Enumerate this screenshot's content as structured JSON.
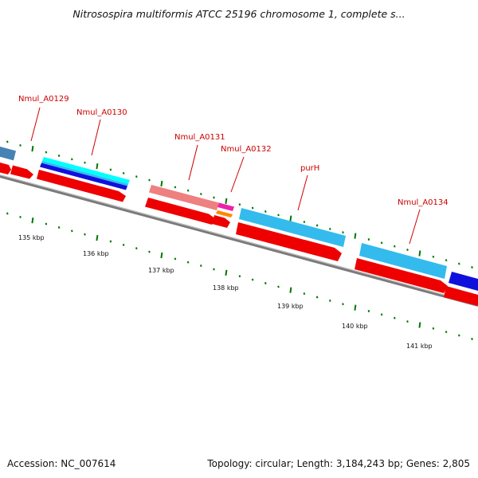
{
  "title": "Nitrosospira multiformis ATCC 25196 chromosome 1, complete s...",
  "footer": {
    "accession": "Accession: NC_007614",
    "summary": "Topology: circular; Length: 3,184,243 bp; Genes: 2,805"
  },
  "colors": {
    "cds": "#ff0000",
    "backbone": "#808080",
    "label": "#cc0000",
    "tick": "#007700",
    "light_blue": "#33bbee",
    "blue": "#1010dd",
    "cyan": "#00ffff",
    "pink": "#ee8080",
    "magenta": "#ee22aa",
    "orange": "#ff8800",
    "steel": "#4682b4"
  },
  "gene_labels": [
    "Nmul_A0129",
    "Nmul_A0130",
    "Nmul_A0131",
    "Nmul_A0132",
    "purH",
    "Nmul_A0134"
  ],
  "scale_labels": [
    "135 kbp",
    "136 kbp",
    "137 kbp",
    "138 kbp",
    "139 kbp",
    "140 kbp",
    "141 kbp"
  ]
}
